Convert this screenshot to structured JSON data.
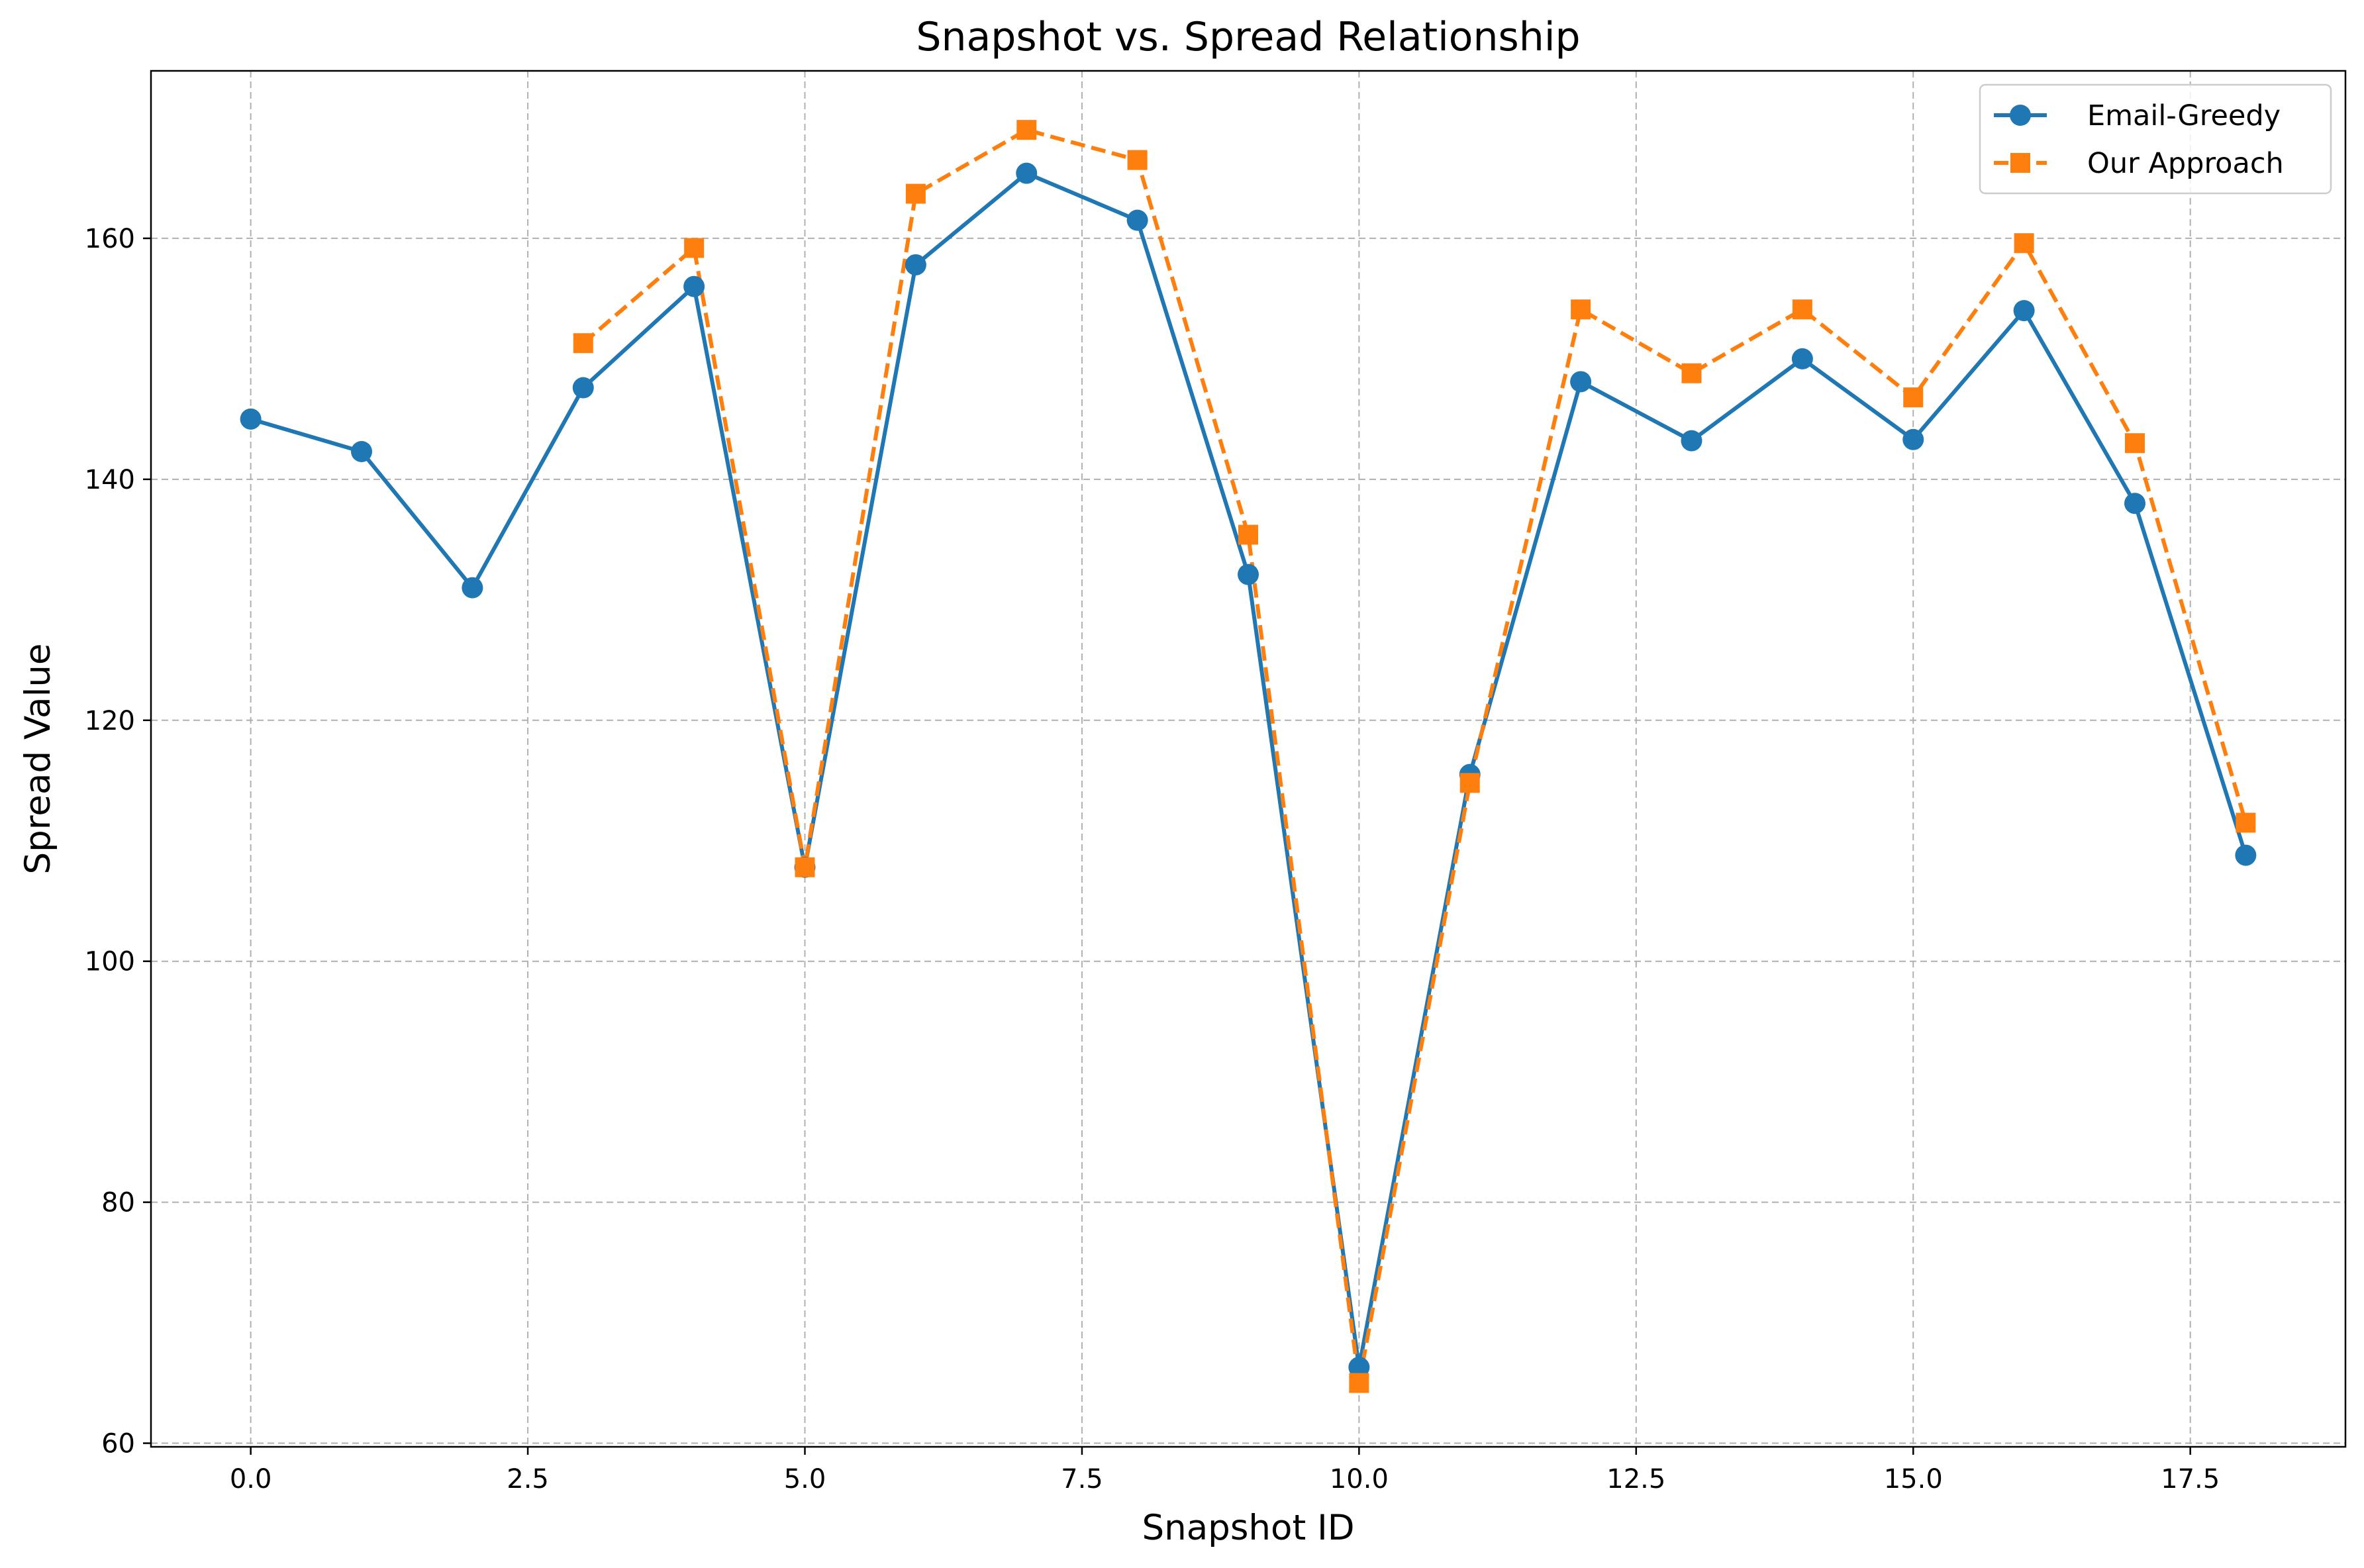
{
  "chart_data": {
    "type": "line",
    "title": "Snapshot vs. Spread Relationship",
    "xlabel": "Snapshot ID",
    "ylabel": "Spread Value",
    "xlim": [
      -0.9,
      18.9
    ],
    "ylim": [
      59.7,
      173.9
    ],
    "x_ticks": [
      0,
      2.5,
      5,
      7.5,
      10,
      12.5,
      15,
      17.5
    ],
    "x_tick_labels": [
      "0.0",
      "2.5",
      "5.0",
      "7.5",
      "10.0",
      "12.5",
      "15.0",
      "17.5"
    ],
    "y_ticks": [
      60,
      80,
      100,
      120,
      140,
      160
    ],
    "y_tick_labels": [
      "60",
      "80",
      "100",
      "120",
      "140",
      "160"
    ],
    "grid": true,
    "legend_position": "top-right",
    "series": [
      {
        "name": "Email-Greedy",
        "color": "#1f77b4",
        "marker": "circle",
        "line_style": "solid",
        "x": [
          0,
          1,
          2,
          3,
          4,
          5,
          6,
          7,
          8,
          9,
          10,
          11,
          12,
          13,
          14,
          15,
          16,
          17,
          18
        ],
        "values": [
          145.0,
          142.3,
          131.0,
          147.6,
          156.0,
          107.8,
          157.8,
          165.4,
          161.5,
          132.1,
          66.3,
          115.5,
          148.1,
          143.2,
          150.0,
          143.3,
          154.0,
          138.0,
          108.8
        ]
      },
      {
        "name": "Our Approach",
        "color": "#ff7f0e",
        "marker": "square",
        "line_style": "dashed",
        "x": [
          3,
          4,
          5,
          6,
          7,
          8,
          9,
          10,
          11,
          12,
          13,
          14,
          15,
          16,
          17,
          18
        ],
        "values": [
          151.3,
          159.2,
          107.8,
          163.7,
          169.0,
          166.5,
          135.4,
          65.0,
          114.8,
          154.1,
          148.8,
          154.1,
          146.8,
          159.6,
          143.0,
          111.5
        ]
      }
    ]
  }
}
